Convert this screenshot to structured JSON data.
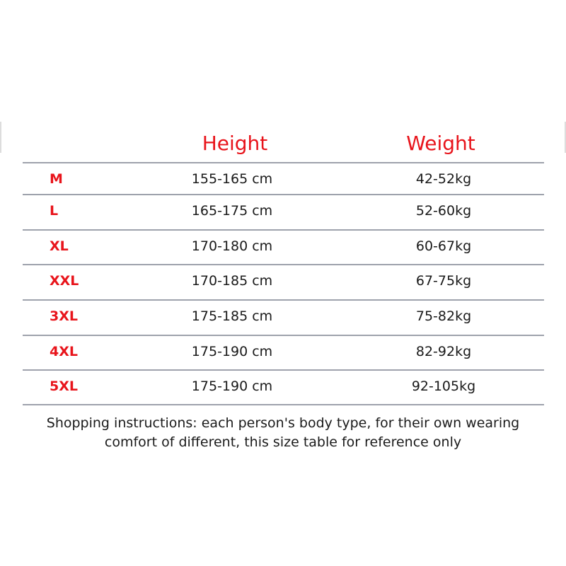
{
  "headers": {
    "height": "Height",
    "weight": "Weight"
  },
  "rows": [
    {
      "size": "M",
      "height": "155-165 cm",
      "weight": "42-52kg"
    },
    {
      "size": "L",
      "height": "165-175 cm",
      "weight": "52-60kg"
    },
    {
      "size": "XL",
      "height": "170-180 cm",
      "weight": "60-67kg"
    },
    {
      "size": "XXL",
      "height": "170-185 cm",
      "weight": "67-75kg"
    },
    {
      "size": "3XL",
      "height": "175-185 cm",
      "weight": "75-82kg"
    },
    {
      "size": "4XL",
      "height": "175-190 cm",
      "weight": "82-92kg"
    },
    {
      "size": "5XL",
      "height": "175-190 cm",
      "weight": "92-105kg"
    }
  ],
  "note": {
    "line1": "Shopping instructions: each person's body type, for their own wearing",
    "line2": "comfort of different, this size table for reference only"
  },
  "colors": {
    "accent": "#e8141b",
    "rule": "#9ea2ac"
  }
}
